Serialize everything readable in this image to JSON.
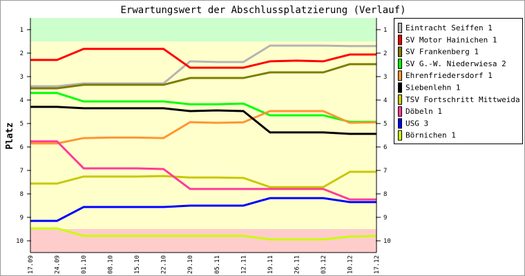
{
  "chart_data": {
    "type": "line",
    "title": "Erwartungswert der Abschlussplatzierung (Verlauf)",
    "xlabel": "",
    "ylabel": "Platz",
    "ylim": [
      0.5,
      10.5
    ],
    "y_inverted": true,
    "yticks": [
      1,
      2,
      3,
      4,
      5,
      6,
      7,
      8,
      9,
      10
    ],
    "bands": [
      {
        "from": 0.5,
        "to": 1.5,
        "color": "#ccffcc"
      },
      {
        "from": 1.5,
        "to": 9.5,
        "color": "#ffffcc"
      },
      {
        "from": 9.5,
        "to": 10.5,
        "color": "#ffcccc"
      }
    ],
    "legend_position": "right",
    "categories": [
      "17.09",
      "24.09",
      "01.10",
      "08.10",
      "15.10",
      "22.10",
      "29.10",
      "05.11",
      "12.11",
      "19.11",
      "26.11",
      "03.12",
      "10.12",
      "17.12"
    ],
    "series": [
      {
        "name": "Eintracht Seiffen 1",
        "color": "#b4b4b4",
        "values": [
          3.41,
          3.41,
          3.29,
          3.29,
          3.29,
          3.29,
          2.35,
          2.38,
          2.38,
          1.68,
          1.68,
          1.68,
          1.7,
          1.7
        ]
      },
      {
        "name": "SV Motor Hainichen 1",
        "color": "#ff0000",
        "values": [
          2.29,
          2.29,
          1.82,
          1.82,
          1.82,
          1.82,
          2.62,
          2.62,
          2.62,
          2.35,
          2.32,
          2.35,
          2.06,
          2.06
        ]
      },
      {
        "name": "SV Frankenberg 1",
        "color": "#7d7d00",
        "values": [
          3.5,
          3.5,
          3.35,
          3.35,
          3.35,
          3.35,
          3.06,
          3.06,
          3.06,
          2.82,
          2.82,
          2.82,
          2.47,
          2.47
        ]
      },
      {
        "name": "SV G.-W. Niederwiesa 2",
        "color": "#00ff00",
        "values": [
          3.7,
          3.7,
          4.06,
          4.06,
          4.06,
          4.06,
          4.18,
          4.18,
          4.15,
          4.65,
          4.65,
          4.65,
          4.93,
          4.93
        ]
      },
      {
        "name": "Ehrenfriedersdorf 1",
        "color": "#ff9632",
        "values": [
          5.85,
          5.85,
          5.62,
          5.6,
          5.6,
          5.62,
          4.94,
          4.97,
          4.95,
          4.47,
          4.47,
          4.47,
          4.97,
          4.95
        ]
      },
      {
        "name": "Siebenlehn 1",
        "color": "#000000",
        "values": [
          4.29,
          4.29,
          4.35,
          4.35,
          4.35,
          4.35,
          4.47,
          4.44,
          4.47,
          5.38,
          5.38,
          5.38,
          5.44,
          5.44
        ]
      },
      {
        "name": "TSV Fortschritt Mittweida 1",
        "color": "#c8c800",
        "values": [
          7.56,
          7.56,
          7.26,
          7.26,
          7.26,
          7.24,
          7.3,
          7.3,
          7.32,
          7.71,
          7.71,
          7.71,
          7.06,
          7.06
        ]
      },
      {
        "name": "Döbeln 1",
        "color": "#ff3c96",
        "values": [
          5.76,
          5.76,
          6.91,
          6.91,
          6.91,
          6.94,
          7.79,
          7.79,
          7.79,
          7.79,
          7.79,
          7.79,
          8.24,
          8.24
        ]
      },
      {
        "name": "USG 3",
        "color": "#0000ff",
        "values": [
          9.15,
          9.15,
          8.56,
          8.56,
          8.56,
          8.56,
          8.5,
          8.5,
          8.5,
          8.18,
          8.18,
          8.18,
          8.35,
          8.35
        ]
      },
      {
        "name": "Börnichen 1",
        "color": "#c8ff00",
        "values": [
          9.47,
          9.47,
          9.79,
          9.79,
          9.79,
          9.79,
          9.79,
          9.79,
          9.79,
          9.94,
          9.94,
          9.94,
          9.82,
          9.79
        ]
      }
    ]
  }
}
